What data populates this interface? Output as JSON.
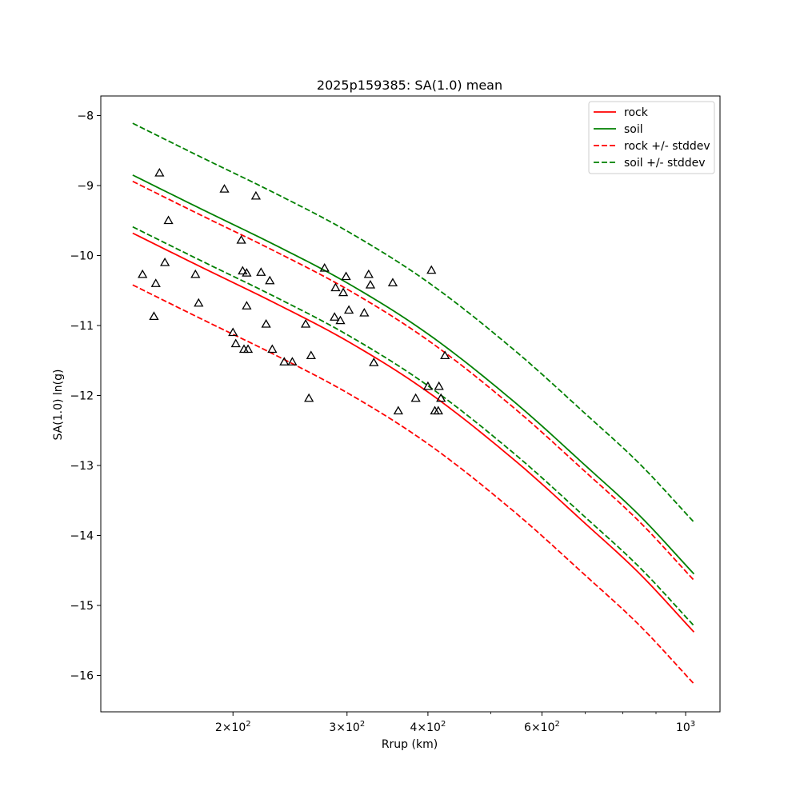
{
  "chart_data": {
    "type": "line",
    "title": "2025p159385: SA(1.0) mean",
    "xlabel": "Rrup (km)",
    "ylabel": "SA(1.0) ln(g)",
    "x_scale": "log",
    "xlim": [
      125,
      1130
    ],
    "ylim": [
      -16.52,
      -7.72
    ],
    "x_ticks": [
      {
        "value": 200,
        "mantissa": "2",
        "exponent": "2"
      },
      {
        "value": 300,
        "mantissa": "3",
        "exponent": "2"
      },
      {
        "value": 400,
        "mantissa": "4",
        "exponent": "2"
      },
      {
        "value": 600,
        "mantissa": "6",
        "exponent": "2"
      },
      {
        "value": 1000,
        "mantissa": "10",
        "exponent": "3"
      }
    ],
    "x_minor_ticks": [
      500,
      700,
      800,
      900
    ],
    "y_ticks": [
      {
        "value": -8,
        "label": "−8"
      },
      {
        "value": -9,
        "label": "−9"
      },
      {
        "value": -10,
        "label": "−10"
      },
      {
        "value": -11,
        "label": "−11"
      },
      {
        "value": -12,
        "label": "−12"
      },
      {
        "value": -13,
        "label": "−13"
      },
      {
        "value": -14,
        "label": "−14"
      },
      {
        "value": -15,
        "label": "−15"
      },
      {
        "value": -16,
        "label": "−16"
      }
    ],
    "grid": false,
    "legend_position": "upper right",
    "x": [
      140,
      180,
      230,
      300,
      400,
      550,
      700,
      850,
      1030
    ],
    "series": [
      {
        "name": "rock",
        "color": "#ff0000",
        "dash": "solid",
        "values": [
          -9.68,
          -10.18,
          -10.66,
          -11.22,
          -11.95,
          -12.96,
          -13.83,
          -14.55,
          -15.38
        ]
      },
      {
        "name": "soil",
        "color": "#008000",
        "dash": "solid",
        "values": [
          -8.85,
          -9.35,
          -9.83,
          -10.39,
          -11.12,
          -12.13,
          -13.0,
          -13.72,
          -14.55
        ]
      },
      {
        "name": "rock +/- stddev",
        "color": "#ff0000",
        "dash": "dashed",
        "values": [
          -8.94,
          -9.44,
          -9.92,
          -10.48,
          -11.21,
          -12.22,
          -13.09,
          -13.81,
          -14.64
        ]
      },
      {
        "name": "rock +/- stddev",
        "color": "#ff0000",
        "dash": "dashed",
        "legend": false,
        "values": [
          -10.42,
          -10.92,
          -11.4,
          -11.96,
          -12.69,
          -13.7,
          -14.57,
          -15.29,
          -16.12
        ]
      },
      {
        "name": "soil +/- stddev",
        "color": "#008000",
        "dash": "dashed",
        "values": [
          -8.11,
          -8.61,
          -9.09,
          -9.65,
          -10.38,
          -11.39,
          -12.26,
          -12.98,
          -13.81
        ]
      },
      {
        "name": "soil +/- stddev",
        "color": "#008000",
        "dash": "dashed",
        "legend": false,
        "values": [
          -9.59,
          -10.09,
          -10.57,
          -11.13,
          -11.86,
          -12.87,
          -13.74,
          -14.46,
          -15.29
        ]
      }
    ],
    "observations": {
      "marker": "triangle",
      "color": "#000000",
      "points": [
        [
          154,
          -8.82
        ],
        [
          145,
          -10.27
        ],
        [
          151,
          -10.87
        ],
        [
          152,
          -10.4
        ],
        [
          157,
          -10.1
        ],
        [
          159,
          -9.5
        ],
        [
          175,
          -10.27
        ],
        [
          177,
          -10.68
        ],
        [
          194,
          -9.05
        ],
        [
          200,
          -11.1
        ],
        [
          202,
          -11.26
        ],
        [
          206,
          -9.78
        ],
        [
          207,
          -10.22
        ],
        [
          208,
          -11.34
        ],
        [
          210,
          -10.25
        ],
        [
          210,
          -10.72
        ],
        [
          211,
          -11.34
        ],
        [
          217,
          -9.15
        ],
        [
          221,
          -10.24
        ],
        [
          225,
          -10.98
        ],
        [
          228,
          -10.36
        ],
        [
          230,
          -11.34
        ],
        [
          240,
          -11.52
        ],
        [
          247,
          -11.52
        ],
        [
          259,
          -10.98
        ],
        [
          262,
          -12.04
        ],
        [
          264,
          -11.43
        ],
        [
          277,
          -10.18
        ],
        [
          287,
          -10.88
        ],
        [
          288,
          -10.46
        ],
        [
          293,
          -10.93
        ],
        [
          296,
          -10.53
        ],
        [
          299,
          -10.3
        ],
        [
          302,
          -10.78
        ],
        [
          319,
          -10.82
        ],
        [
          324,
          -10.27
        ],
        [
          326,
          -10.42
        ],
        [
          330,
          -11.53
        ],
        [
          353,
          -10.39
        ],
        [
          360,
          -12.22
        ],
        [
          383,
          -12.04
        ],
        [
          400,
          -11.87
        ],
        [
          405,
          -10.21
        ],
        [
          410,
          -12.22
        ],
        [
          415,
          -12.22
        ],
        [
          416,
          -11.87
        ],
        [
          419,
          -12.04
        ],
        [
          425,
          -11.43
        ]
      ]
    }
  }
}
